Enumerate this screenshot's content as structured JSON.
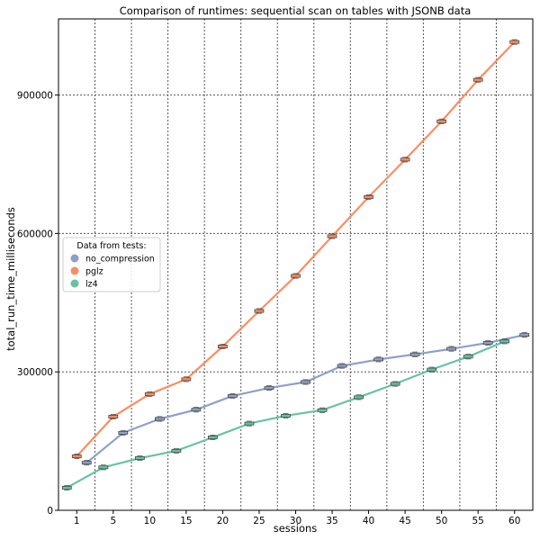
{
  "chart_data": {
    "type": "line",
    "title": "Comparison of runtimes: sequential scan on tables with JSONB data",
    "xlabel": "sessions",
    "ylabel": "total_run_time_milliseconds",
    "categories": [
      "1",
      "5",
      "10",
      "15",
      "20",
      "25",
      "30",
      "35",
      "40",
      "45",
      "50",
      "55",
      "60"
    ],
    "yticks": [
      0,
      300000,
      600000,
      900000
    ],
    "ytick_labels": [
      "0",
      "300000",
      "600000",
      "900000"
    ],
    "ylim": [
      0,
      1065000
    ],
    "grid": "dotted",
    "legend": {
      "title": "Data from tests:",
      "placement": "center-left"
    },
    "series": [
      {
        "name": "no_compression",
        "color": "#8da0cb",
        "values": [
          103000,
          168000,
          198000,
          218000,
          248000,
          265000,
          278000,
          313000,
          327000,
          338000,
          350000,
          363000,
          380000
        ]
      },
      {
        "name": "pglz",
        "color": "#fc8d62",
        "values": [
          117000,
          203000,
          252000,
          284000,
          355000,
          432000,
          508000,
          594000,
          679000,
          760000,
          843000,
          933000,
          1015000
        ]
      },
      {
        "name": "lz4",
        "color": "#66c2a5",
        "values": [
          49000,
          93000,
          113000,
          129000,
          158000,
          188000,
          205000,
          217000,
          245000,
          274000,
          305000,
          333000,
          366000
        ]
      }
    ]
  }
}
